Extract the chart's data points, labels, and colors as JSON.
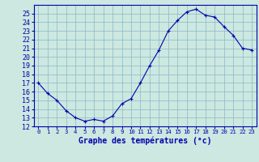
{
  "hours": [
    0,
    1,
    2,
    3,
    4,
    5,
    6,
    7,
    8,
    9,
    10,
    11,
    12,
    13,
    14,
    15,
    16,
    17,
    18,
    19,
    20,
    21,
    22,
    23
  ],
  "temperatures": [
    17,
    15.8,
    15.0,
    13.8,
    13.0,
    12.6,
    12.8,
    12.6,
    13.2,
    14.6,
    15.2,
    17.0,
    19.0,
    20.8,
    23.0,
    24.2,
    25.2,
    25.5,
    24.8,
    24.6,
    23.5,
    22.5,
    21.0,
    20.8
  ],
  "xlabel": "Graphe des températures (°c)",
  "ylim": [
    12,
    26
  ],
  "xlim": [
    -0.5,
    23.5
  ],
  "yticks": [
    12,
    13,
    14,
    15,
    16,
    17,
    18,
    19,
    20,
    21,
    22,
    23,
    24,
    25
  ],
  "line_color": "#0000aa",
  "marker_color": "#0000aa",
  "bg_color": "#cce8e0",
  "grid_color": "#88b8c8",
  "axis_color": "#0000aa",
  "tick_label_color": "#0000aa",
  "xlabel_color": "#0000aa",
  "xlabel_fontsize": 7.0,
  "xlabel_fontweight": "bold",
  "ytick_fontsize": 6.0,
  "xtick_fontsize": 5.2
}
